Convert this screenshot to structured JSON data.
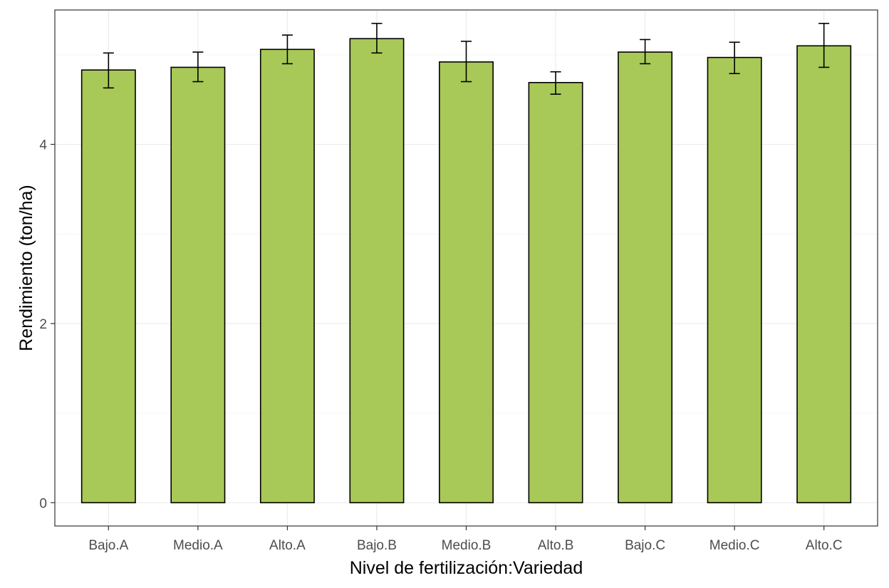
{
  "chart_data": {
    "type": "bar",
    "title": "",
    "xlabel": "Nivel de fertilización:Variedad",
    "ylabel": "Rendimiento (ton/ha)",
    "categories": [
      "Bajo.A",
      "Medio.A",
      "Alto.A",
      "Bajo.B",
      "Medio.B",
      "Alto.B",
      "Bajo.C",
      "Medio.C",
      "Alto.C"
    ],
    "values": [
      4.83,
      4.86,
      5.06,
      5.18,
      4.92,
      4.69,
      5.03,
      4.97,
      5.1
    ],
    "error_low": [
      4.63,
      4.7,
      4.9,
      5.02,
      4.7,
      4.56,
      4.9,
      4.79,
      4.86
    ],
    "error_high": [
      5.02,
      5.03,
      5.22,
      5.35,
      5.15,
      4.81,
      5.17,
      5.14,
      5.35
    ],
    "ylim": [
      -0.26,
      5.5
    ],
    "yticks": [
      0,
      2,
      4
    ],
    "grid": true,
    "legend": "none",
    "colors": {
      "bar_fill": "#a8c957",
      "bar_stroke": "#000000",
      "grid_major": "#ebebeb",
      "grid_minor": "#f5f5f5",
      "panel_border": "#333333"
    }
  }
}
